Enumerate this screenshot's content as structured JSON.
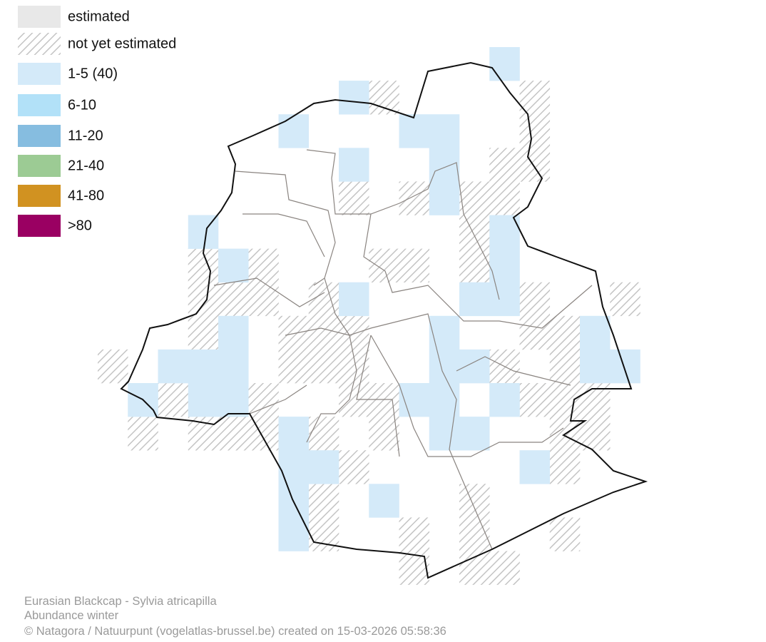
{
  "legend": [
    {
      "label": "estimated",
      "color": "#e8e8e8"
    },
    {
      "label": "not yet estimated",
      "color": "hatch"
    },
    {
      "label": "1-5 (40)",
      "color": "#d4eaf9"
    },
    {
      "label": "6-10",
      "color": "#b2e1f8"
    },
    {
      "label": "11-20",
      "color": "#86bde0"
    },
    {
      "label": "21-40",
      "color": "#9ccb94"
    },
    {
      "label": "41-80",
      "color": "#d19221"
    },
    {
      "label": ">80",
      "color": "#9a0062"
    }
  ],
  "footer": {
    "species": "Eurasian Blackcap - Sylvia atricapilla",
    "map_type": "Abundance winter",
    "credit": "© Natagora / Natuurpunt (vogelatlas-brussel.be) created on 15-03-2026 05:58:36"
  }
}
